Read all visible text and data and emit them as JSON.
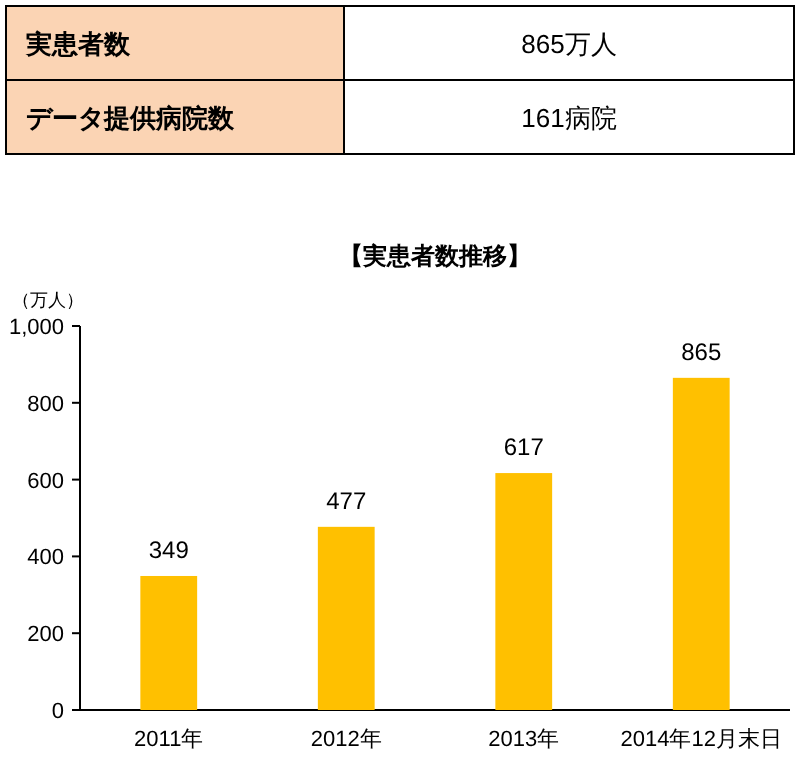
{
  "chart_data": [
    {
      "type": "other",
      "annotations": [
        "実患者数",
        "865万人",
        "データ提供病院数",
        "161病院"
      ]
    },
    {
      "type": "bar",
      "title": "【実患者数推移】",
      "ylabel": "（万人）",
      "categories": [
        "2011年",
        "2012年",
        "2013年",
        "2014年12月末日"
      ],
      "values": [
        349,
        477,
        617,
        865
      ],
      "color": "#ffc000",
      "ylim": [
        0,
        1000
      ],
      "yticks": [
        0,
        200,
        400,
        600,
        800,
        {
          "value": 1000,
          "label": "1,000"
        }
      ],
      "data_labels": true
    }
  ]
}
